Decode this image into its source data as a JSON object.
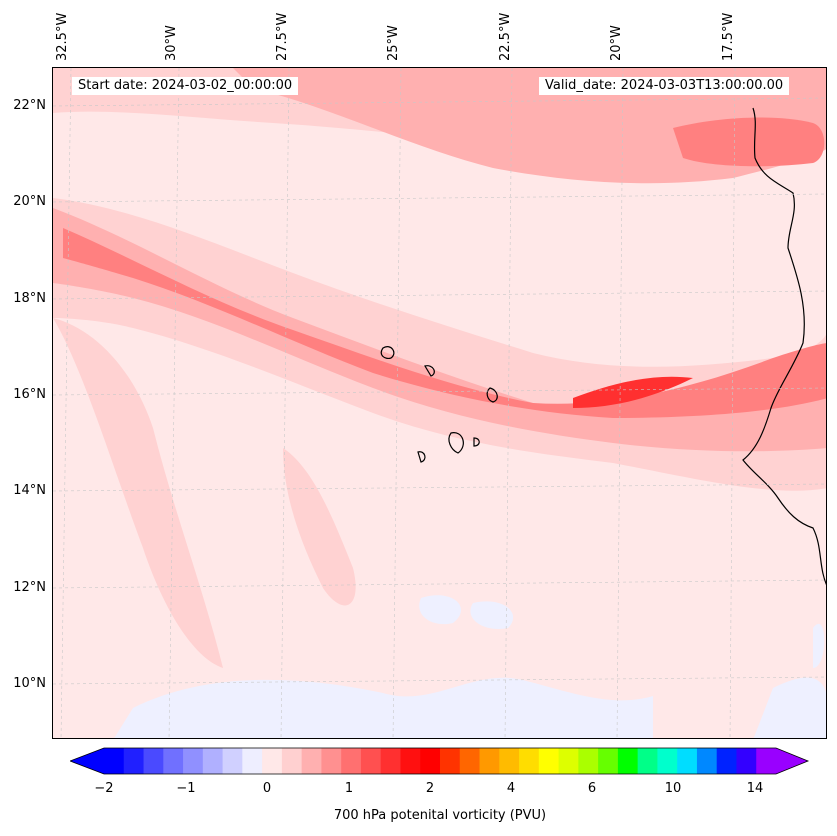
{
  "map": {
    "start_label": "Start date: 2024-03-02_00:00:00",
    "valid_label": "Valid_date: 2024-03-03T13:00:00.00",
    "longitude_labels": [
      "32.5°W",
      "30°W",
      "27.5°W",
      "25°W",
      "22.5°W",
      "20°W",
      "17.5°W"
    ],
    "latitude_labels": [
      "22°N",
      "20°N",
      "18°N",
      "16°N",
      "14°N",
      "12°N",
      "10°N"
    ],
    "variable": "700 hPa potential vorticity",
    "colors": {
      "background": "#ffe8e8",
      "weak": "#ffd2d2",
      "moderate": "#ffb0b0",
      "strong": "#ff8080",
      "peak": "#ff3030",
      "negative": "#eef0ff",
      "coast": "#000000"
    }
  },
  "colorbar": {
    "label": "700 hPa potenital vorticity (PVU)",
    "tick_labels": [
      "−2",
      "−1",
      "0",
      "1",
      "2",
      "4",
      "6",
      "10",
      "14"
    ],
    "levels": [
      -2,
      -1.75,
      -1.5,
      -1.25,
      -1,
      -0.75,
      -0.5,
      -0.25,
      0,
      0.25,
      0.5,
      0.75,
      1,
      1.25,
      1.5,
      1.75,
      2,
      2.5,
      3,
      3.5,
      4,
      4.5,
      5,
      5.5,
      6,
      7,
      8,
      9,
      10,
      11,
      12,
      13,
      14,
      15
    ],
    "colors": [
      "#0000ff",
      "#2020ff",
      "#4a4aff",
      "#7070ff",
      "#9090ff",
      "#b0b0ff",
      "#d0d0ff",
      "#eeeeff",
      "#ffe8e8",
      "#ffd0d0",
      "#ffb0b0",
      "#ff9090",
      "#ff7070",
      "#ff5050",
      "#ff3030",
      "#ff1010",
      "#ff0000",
      "#ff3300",
      "#ff6600",
      "#ff9900",
      "#ffbb00",
      "#ffdd00",
      "#ffff00",
      "#ddff00",
      "#aaff00",
      "#66ff00",
      "#00ff00",
      "#00ff88",
      "#00ffcc",
      "#00ddff",
      "#0088ff",
      "#0022ff",
      "#3300ff",
      "#9900ff"
    ]
  }
}
